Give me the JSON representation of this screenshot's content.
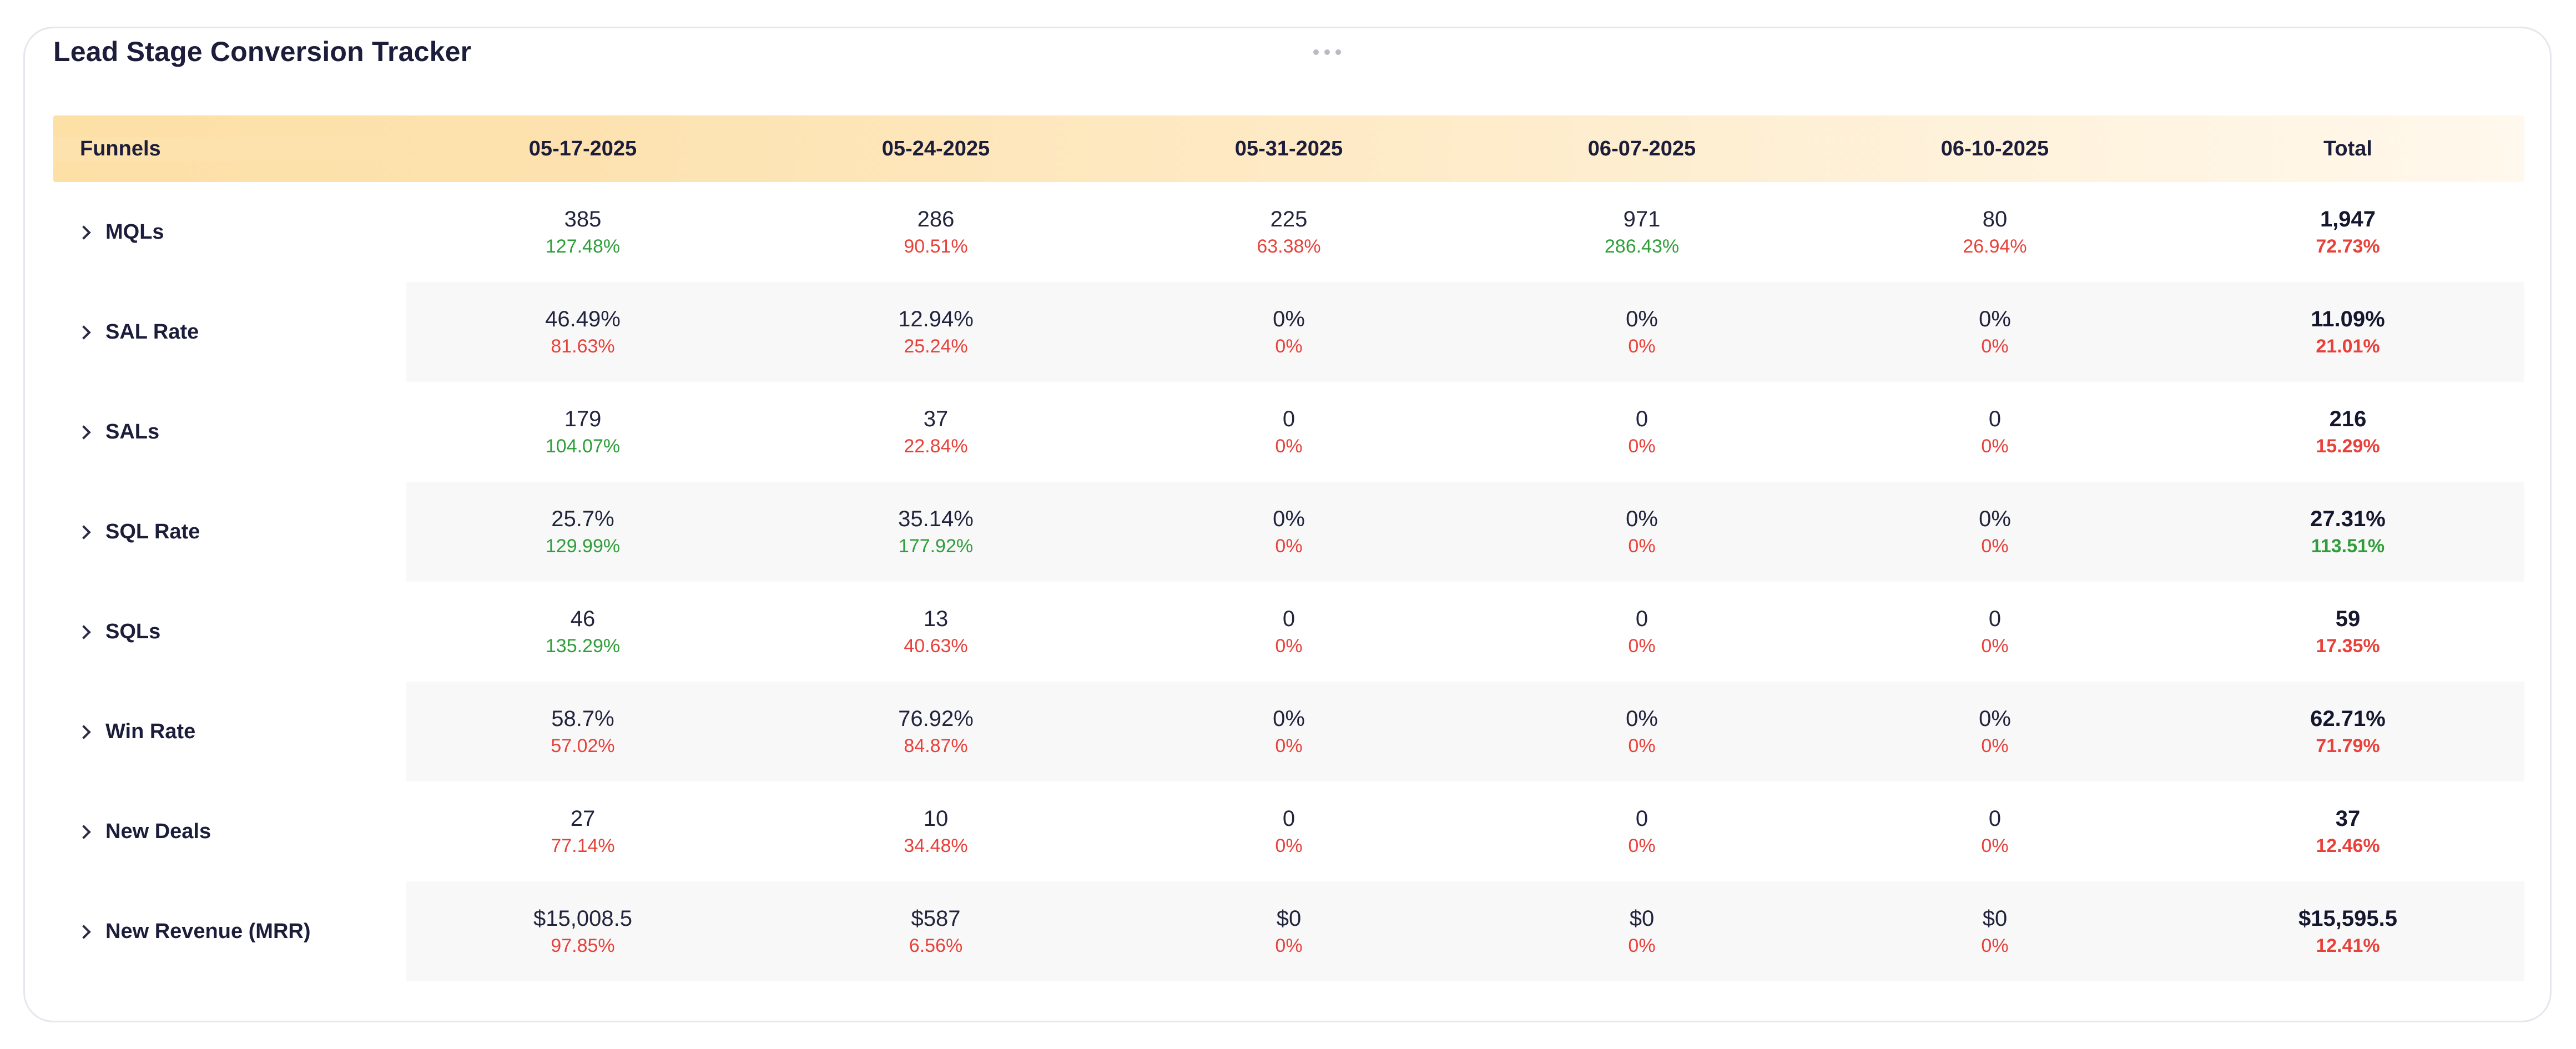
{
  "title": "Lead Stage Conversion Tracker",
  "columns": {
    "first": "Funnels",
    "dates": [
      "05-17-2025",
      "05-24-2025",
      "05-31-2025",
      "06-07-2025",
      "06-10-2025"
    ],
    "total": "Total"
  },
  "colors": {
    "positive": "#2f9e3a",
    "negative": "#e8413a",
    "header_gradient_start": "#fde0a6",
    "header_gradient_end": "#fff8ec"
  },
  "rows": [
    {
      "label": "MQLs",
      "cells": [
        {
          "value": "385",
          "pct": "127.48%",
          "trend": "up"
        },
        {
          "value": "286",
          "pct": "90.51%",
          "trend": "down"
        },
        {
          "value": "225",
          "pct": "63.38%",
          "trend": "down"
        },
        {
          "value": "971",
          "pct": "286.43%",
          "trend": "up"
        },
        {
          "value": "80",
          "pct": "26.94%",
          "trend": "down"
        }
      ],
      "total": {
        "value": "1,947",
        "pct": "72.73%",
        "trend": "down"
      }
    },
    {
      "label": "SAL Rate",
      "cells": [
        {
          "value": "46.49%",
          "pct": "81.63%",
          "trend": "down"
        },
        {
          "value": "12.94%",
          "pct": "25.24%",
          "trend": "down"
        },
        {
          "value": "0%",
          "pct": "0%",
          "trend": "down"
        },
        {
          "value": "0%",
          "pct": "0%",
          "trend": "down"
        },
        {
          "value": "0%",
          "pct": "0%",
          "trend": "down"
        }
      ],
      "total": {
        "value": "11.09%",
        "pct": "21.01%",
        "trend": "down"
      }
    },
    {
      "label": "SALs",
      "cells": [
        {
          "value": "179",
          "pct": "104.07%",
          "trend": "up"
        },
        {
          "value": "37",
          "pct": "22.84%",
          "trend": "down"
        },
        {
          "value": "0",
          "pct": "0%",
          "trend": "down"
        },
        {
          "value": "0",
          "pct": "0%",
          "trend": "down"
        },
        {
          "value": "0",
          "pct": "0%",
          "trend": "down"
        }
      ],
      "total": {
        "value": "216",
        "pct": "15.29%",
        "trend": "down"
      }
    },
    {
      "label": "SQL Rate",
      "cells": [
        {
          "value": "25.7%",
          "pct": "129.99%",
          "trend": "up"
        },
        {
          "value": "35.14%",
          "pct": "177.92%",
          "trend": "up"
        },
        {
          "value": "0%",
          "pct": "0%",
          "trend": "down"
        },
        {
          "value": "0%",
          "pct": "0%",
          "trend": "down"
        },
        {
          "value": "0%",
          "pct": "0%",
          "trend": "down"
        }
      ],
      "total": {
        "value": "27.31%",
        "pct": "113.51%",
        "trend": "up"
      }
    },
    {
      "label": "SQLs",
      "cells": [
        {
          "value": "46",
          "pct": "135.29%",
          "trend": "up"
        },
        {
          "value": "13",
          "pct": "40.63%",
          "trend": "down"
        },
        {
          "value": "0",
          "pct": "0%",
          "trend": "down"
        },
        {
          "value": "0",
          "pct": "0%",
          "trend": "down"
        },
        {
          "value": "0",
          "pct": "0%",
          "trend": "down"
        }
      ],
      "total": {
        "value": "59",
        "pct": "17.35%",
        "trend": "down"
      }
    },
    {
      "label": "Win Rate",
      "cells": [
        {
          "value": "58.7%",
          "pct": "57.02%",
          "trend": "down"
        },
        {
          "value": "76.92%",
          "pct": "84.87%",
          "trend": "down"
        },
        {
          "value": "0%",
          "pct": "0%",
          "trend": "down"
        },
        {
          "value": "0%",
          "pct": "0%",
          "trend": "down"
        },
        {
          "value": "0%",
          "pct": "0%",
          "trend": "down"
        }
      ],
      "total": {
        "value": "62.71%",
        "pct": "71.79%",
        "trend": "down"
      }
    },
    {
      "label": "New Deals",
      "cells": [
        {
          "value": "27",
          "pct": "77.14%",
          "trend": "down"
        },
        {
          "value": "10",
          "pct": "34.48%",
          "trend": "down"
        },
        {
          "value": "0",
          "pct": "0%",
          "trend": "down"
        },
        {
          "value": "0",
          "pct": "0%",
          "trend": "down"
        },
        {
          "value": "0",
          "pct": "0%",
          "trend": "down"
        }
      ],
      "total": {
        "value": "37",
        "pct": "12.46%",
        "trend": "down"
      }
    },
    {
      "label": "New Revenue (MRR)",
      "cells": [
        {
          "value": "$15,008.5",
          "pct": "97.85%",
          "trend": "down"
        },
        {
          "value": "$587",
          "pct": "6.56%",
          "trend": "down"
        },
        {
          "value": "$0",
          "pct": "0%",
          "trend": "down"
        },
        {
          "value": "$0",
          "pct": "0%",
          "trend": "down"
        },
        {
          "value": "$0",
          "pct": "0%",
          "trend": "down"
        }
      ],
      "total": {
        "value": "$15,595.5",
        "pct": "12.41%",
        "trend": "down"
      }
    }
  ]
}
